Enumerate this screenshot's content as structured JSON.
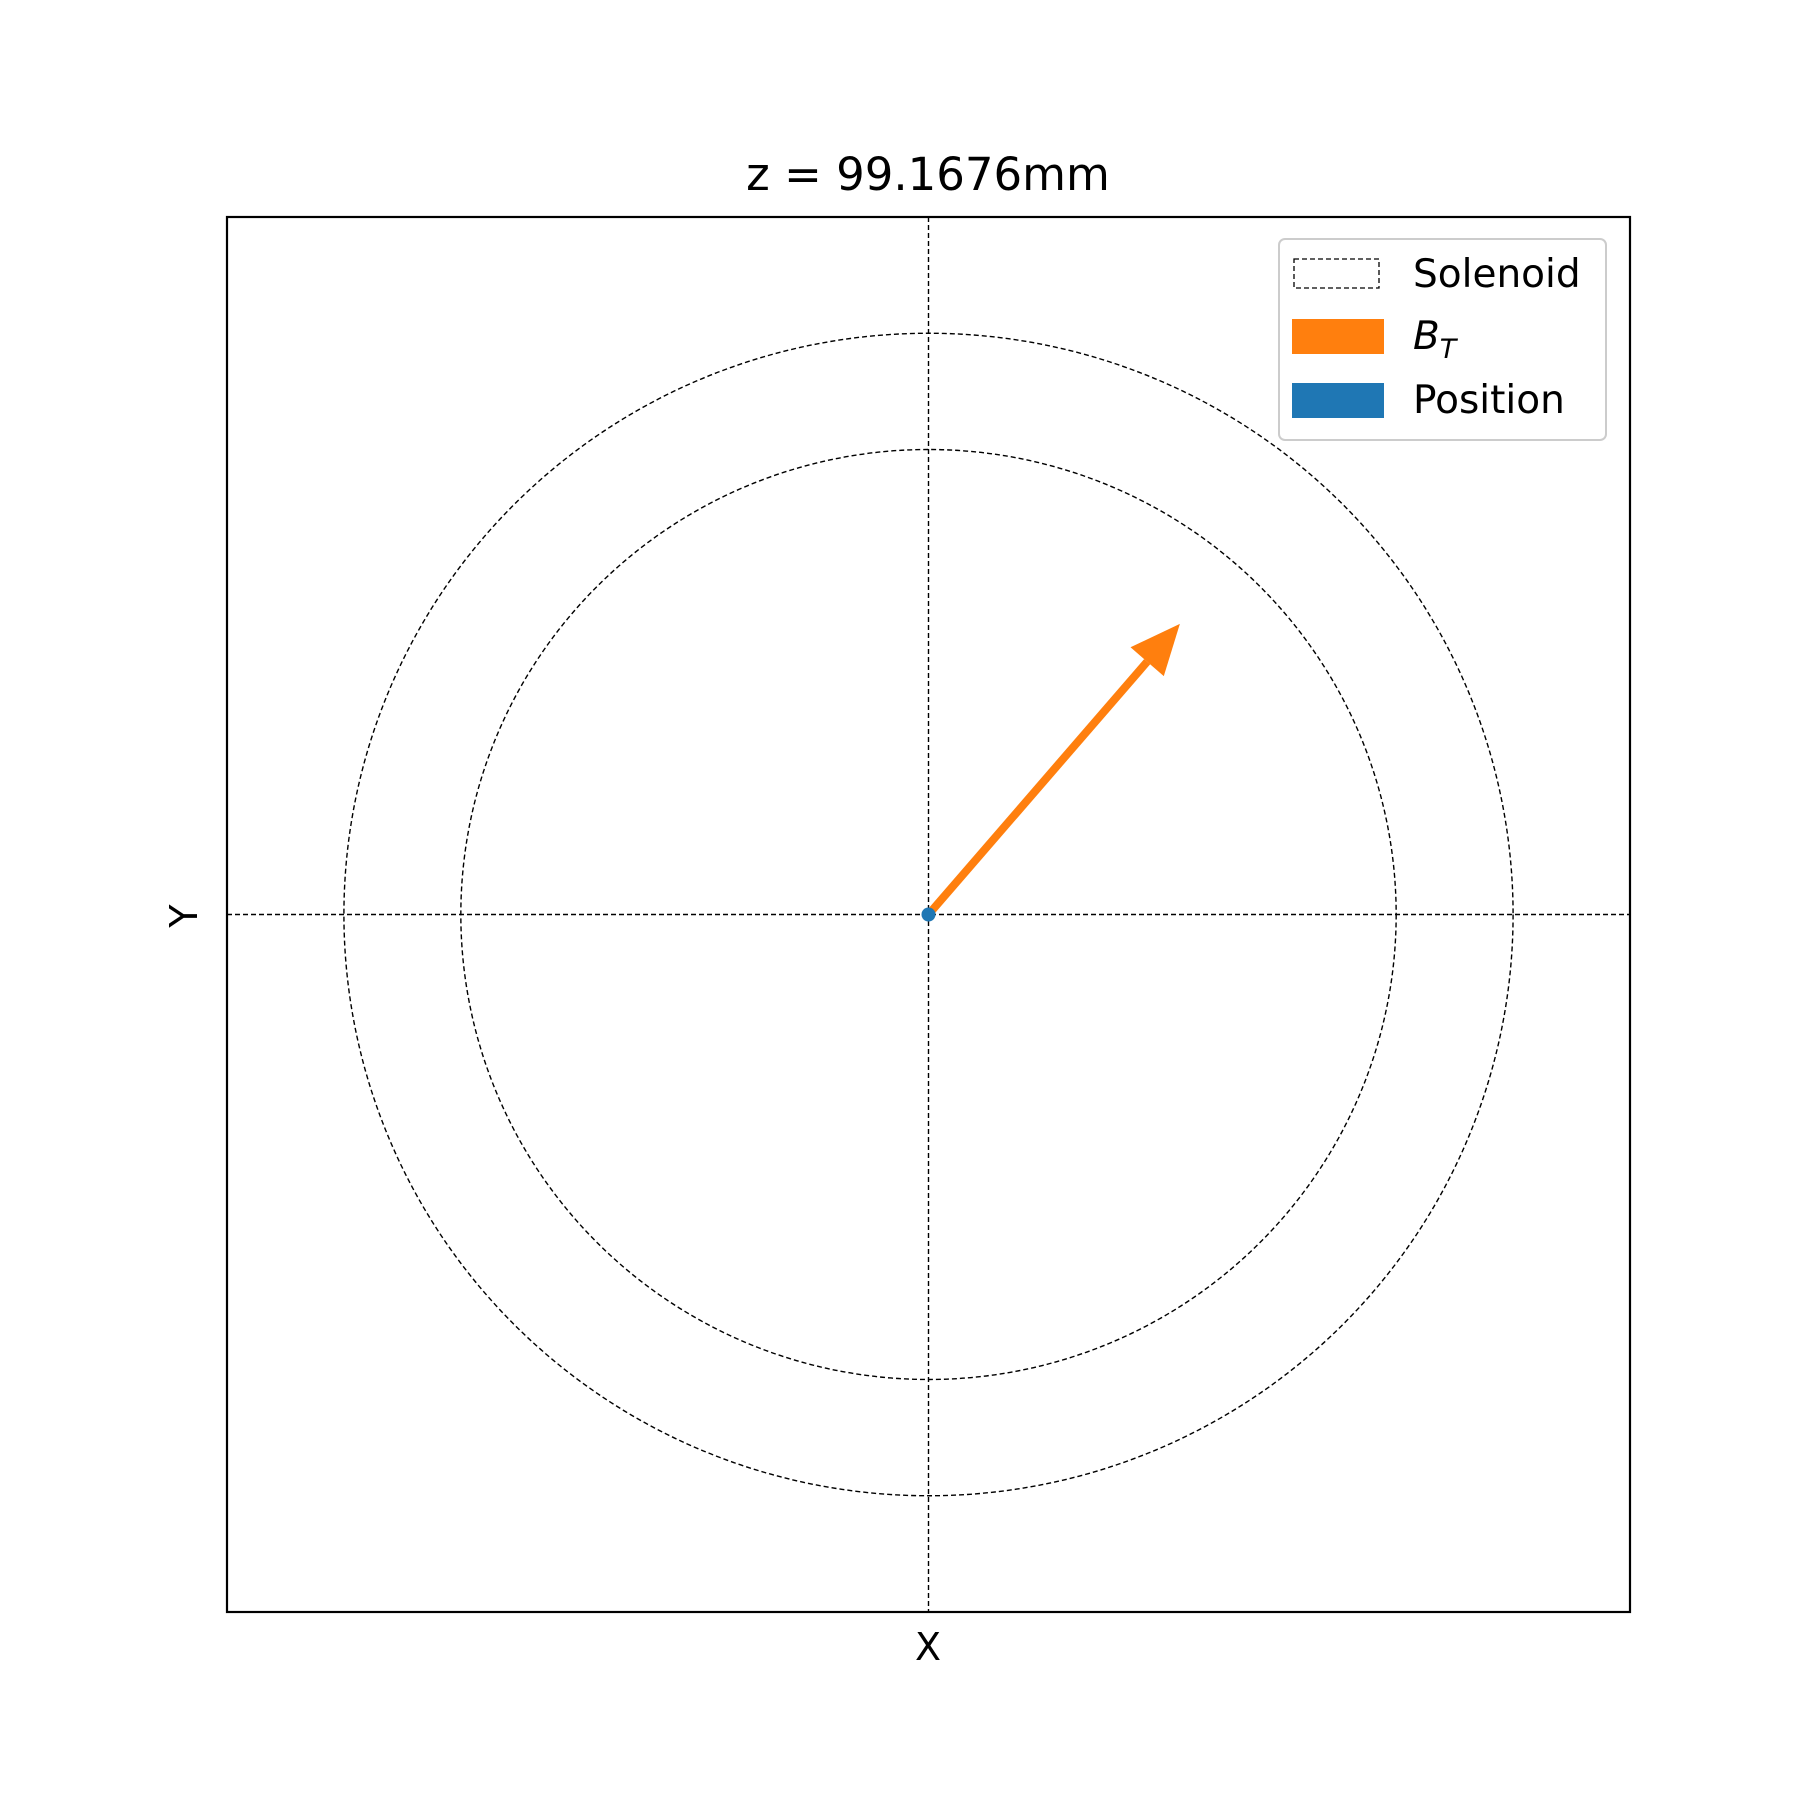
{
  "chart_data": {
    "type": "scatter",
    "title": "z = 99.1676mm",
    "xlabel": "X",
    "ylabel": "Y",
    "xlim": [
      -1.2,
      1.2
    ],
    "ylim": [
      -1.2,
      1.2
    ],
    "grid": false,
    "legend_position": "upper right",
    "solenoid": {
      "name": "Solenoid",
      "radii": [
        0.8,
        1.0
      ],
      "style": "dashed",
      "color": "#000000"
    },
    "field_vector": {
      "name": "B",
      "name_subscript": "T",
      "x0": 0.0,
      "y0": 0.0,
      "dx": 0.43,
      "dy": 0.5,
      "color": "#ff7f0e"
    },
    "position": {
      "name": "Position",
      "x": 0.0,
      "y": 0.0,
      "color": "#1f77b4"
    }
  }
}
